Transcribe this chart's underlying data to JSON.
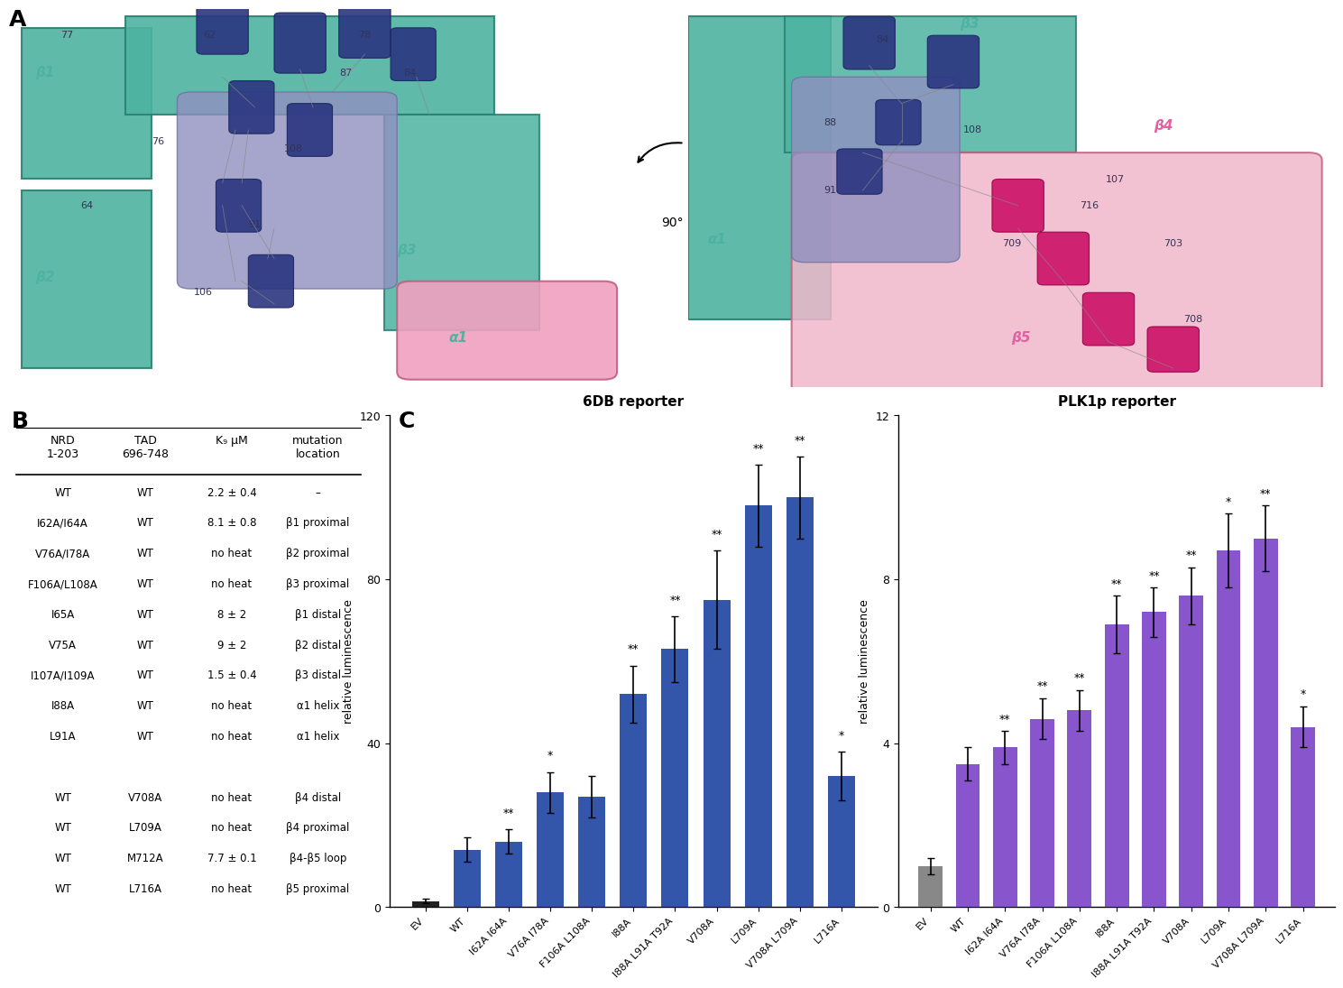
{
  "panel_b": {
    "headers": [
      "NRD\n1-203",
      "TAD\n696-748",
      "K₉ μM",
      "mutation\nlocation"
    ],
    "rows": [
      [
        "WT",
        "WT",
        "2.2 ± 0.4",
        "–"
      ],
      [
        "I62A/I64A",
        "WT",
        "8.1 ± 0.8",
        "β1 proximal"
      ],
      [
        "V76A/I78A",
        "WT",
        "no heat",
        "β2 proximal"
      ],
      [
        "F106A/L108A",
        "WT",
        "no heat",
        "β3 proximal"
      ],
      [
        "I65A",
        "WT",
        "8 ± 2",
        "β1 distal"
      ],
      [
        "V75A",
        "WT",
        "9 ± 2",
        "β2 distal"
      ],
      [
        "I107A/I109A",
        "WT",
        "1.5 ± 0.4",
        "β3 distal"
      ],
      [
        "I88A",
        "WT",
        "no heat",
        "α1 helix"
      ],
      [
        "L91A",
        "WT",
        "no heat",
        "α1 helix"
      ],
      [
        "",
        "",
        "",
        ""
      ],
      [
        "WT",
        "V708A",
        "no heat",
        "β4 distal"
      ],
      [
        "WT",
        "L709A",
        "no heat",
        "β4 proximal"
      ],
      [
        "WT",
        "M712A",
        "7.7 ± 0.1",
        "β4-β5 loop"
      ],
      [
        "WT",
        "L716A",
        "no heat",
        "β5 proximal"
      ]
    ]
  },
  "panel_c_6db": {
    "title": "6DB reporter",
    "ylabel": "relative luminescence",
    "ylim": [
      0,
      120
    ],
    "yticks": [
      0,
      40,
      80,
      120
    ],
    "categories": [
      "EV",
      "WT",
      "I62A I64A",
      "V76A I78A",
      "F106A L108A",
      "I88A",
      "I88A L91A T92A",
      "V708A",
      "L709A",
      "V708A L709A",
      "L716A"
    ],
    "values": [
      1.5,
      14,
      16,
      28,
      27,
      52,
      63,
      75,
      98,
      100,
      32
    ],
    "errors": [
      0.5,
      3,
      3,
      5,
      5,
      7,
      8,
      12,
      10,
      10,
      6
    ],
    "colors": [
      "#222222",
      "#3355aa",
      "#3355aa",
      "#3355aa",
      "#3355aa",
      "#3355aa",
      "#3355aa",
      "#3355aa",
      "#3355aa",
      "#3355aa",
      "#3355aa"
    ],
    "significance": [
      "",
      "",
      "**",
      "*",
      "",
      "**",
      "**",
      "**",
      "**",
      "**",
      "*"
    ]
  },
  "panel_c_plk1": {
    "title": "PLK1p reporter",
    "ylabel": "relative luminescence",
    "ylim": [
      0,
      12
    ],
    "yticks": [
      0,
      4,
      8,
      12
    ],
    "categories": [
      "EV",
      "WT",
      "I62A I64A",
      "V76A I78A",
      "F106A L108A",
      "I88A",
      "I88A L91A T92A",
      "V708A",
      "L709A",
      "V708A L709A",
      "L716A"
    ],
    "values": [
      1.0,
      3.5,
      3.9,
      4.6,
      4.8,
      6.9,
      7.2,
      7.6,
      8.7,
      9.0,
      4.4
    ],
    "errors": [
      0.2,
      0.4,
      0.4,
      0.5,
      0.5,
      0.7,
      0.6,
      0.7,
      0.9,
      0.8,
      0.5
    ],
    "colors": [
      "#888888",
      "#8855cc",
      "#8855cc",
      "#8855cc",
      "#8855cc",
      "#8855cc",
      "#8855cc",
      "#8855cc",
      "#8855cc",
      "#8855cc",
      "#8855cc"
    ],
    "significance": [
      "",
      "",
      "**",
      "**",
      "**",
      "**",
      "**",
      "**",
      "*",
      "**",
      "*"
    ]
  },
  "bg_color": "#ffffff",
  "text_color": "#000000"
}
